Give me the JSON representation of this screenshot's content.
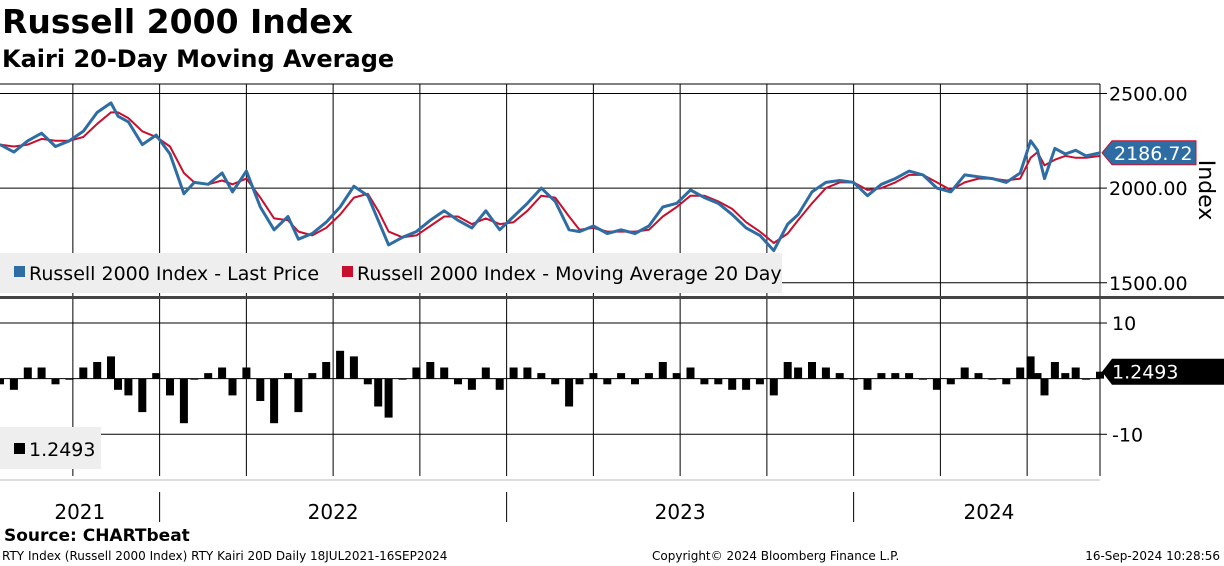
{
  "title": "Russell 2000 Index",
  "subtitle": "Kairi 20-Day Moving Average",
  "source": "Source: CHARTbeat",
  "footer": {
    "left": "RTY Index (Russell 2000 Index) RTY Kairi 20D  Daily 18JUL2021-16SEP2024",
    "center": "Copyright© 2024 Bloomberg Finance L.P.",
    "right": "16-Sep-2024 10:28:56"
  },
  "colors": {
    "price": "#2e6da4",
    "ma": "#c8102e",
    "kairi": "#000000",
    "legend_bg": "#eeeeee"
  },
  "chart_data": [
    {
      "type": "line",
      "name": "price-panel",
      "ylabel": "Index",
      "ylim": [
        1430,
        2550
      ],
      "yticks": [
        1500,
        2000,
        2500
      ],
      "ytick_labels": [
        "1500.00",
        "2000.00",
        "2500.00"
      ],
      "x_range": [
        2021.54,
        2024.71
      ],
      "x_year_labels": [
        {
          "label": "2021",
          "x": 2021.77
        },
        {
          "label": "2022",
          "x": 2022.5
        },
        {
          "label": "2023",
          "x": 2023.5
        },
        {
          "label": "2024",
          "x": 2024.39
        }
      ],
      "x_year_boundaries": [
        2022.0,
        2023.0,
        2024.0
      ],
      "x_gridlines": [
        2021.54,
        2021.75,
        2022.0,
        2022.25,
        2022.5,
        2022.75,
        2023.0,
        2023.25,
        2023.5,
        2023.75,
        2024.0,
        2024.25,
        2024.5
      ],
      "last_value_label": "2186.72",
      "series": [
        {
          "name": "Russell 2000 Index - Last Price",
          "legend": "Russell 2000 Index - Last Price",
          "x": [
            2021.54,
            2021.58,
            2021.62,
            2021.66,
            2021.7,
            2021.74,
            2021.78,
            2021.82,
            2021.86,
            2021.88,
            2021.91,
            2021.95,
            2021.99,
            2022.03,
            2022.07,
            2022.1,
            2022.14,
            2022.18,
            2022.21,
            2022.25,
            2022.29,
            2022.33,
            2022.37,
            2022.4,
            2022.44,
            2022.48,
            2022.52,
            2022.56,
            2022.6,
            2022.63,
            2022.66,
            2022.7,
            2022.74,
            2022.78,
            2022.82,
            2022.86,
            2022.9,
            2022.94,
            2022.98,
            2023.02,
            2023.06,
            2023.1,
            2023.14,
            2023.18,
            2023.21,
            2023.25,
            2023.29,
            2023.33,
            2023.37,
            2023.41,
            2023.45,
            2023.49,
            2023.53,
            2023.57,
            2023.61,
            2023.65,
            2023.69,
            2023.73,
            2023.77,
            2023.81,
            2023.84,
            2023.88,
            2023.92,
            2023.96,
            2024.0,
            2024.04,
            2024.08,
            2024.12,
            2024.16,
            2024.2,
            2024.24,
            2024.28,
            2024.32,
            2024.36,
            2024.4,
            2024.44,
            2024.48,
            2024.51,
            2024.53,
            2024.55,
            2024.58,
            2024.61,
            2024.64,
            2024.67,
            2024.71
          ],
          "y": [
            2230,
            2190,
            2250,
            2290,
            2220,
            2250,
            2300,
            2400,
            2450,
            2380,
            2350,
            2230,
            2280,
            2180,
            1970,
            2030,
            2020,
            2080,
            1980,
            2090,
            1900,
            1780,
            1850,
            1730,
            1760,
            1820,
            1900,
            2010,
            1960,
            1830,
            1700,
            1740,
            1770,
            1830,
            1880,
            1830,
            1790,
            1880,
            1780,
            1850,
            1920,
            2000,
            1930,
            1780,
            1770,
            1800,
            1760,
            1780,
            1760,
            1800,
            1900,
            1920,
            1990,
            1950,
            1920,
            1860,
            1790,
            1750,
            1670,
            1810,
            1860,
            1980,
            2030,
            2040,
            2030,
            1960,
            2020,
            2050,
            2090,
            2070,
            2000,
            1980,
            2070,
            2060,
            2050,
            2030,
            2080,
            2250,
            2200,
            2050,
            2210,
            2180,
            2200,
            2170,
            2186.72
          ]
        },
        {
          "name": "Russell 2000 Index - Moving Average 20 Day",
          "legend": "Russell 2000 Index - Moving Average 20 Day",
          "x": [
            2021.54,
            2021.58,
            2021.62,
            2021.66,
            2021.7,
            2021.74,
            2021.78,
            2021.82,
            2021.86,
            2021.88,
            2021.91,
            2021.95,
            2021.99,
            2022.03,
            2022.07,
            2022.1,
            2022.14,
            2022.18,
            2022.21,
            2022.25,
            2022.29,
            2022.33,
            2022.37,
            2022.4,
            2022.44,
            2022.48,
            2022.52,
            2022.56,
            2022.6,
            2022.63,
            2022.66,
            2022.7,
            2022.74,
            2022.78,
            2022.82,
            2022.86,
            2022.9,
            2022.94,
            2022.98,
            2023.02,
            2023.06,
            2023.1,
            2023.14,
            2023.18,
            2023.21,
            2023.25,
            2023.29,
            2023.33,
            2023.37,
            2023.41,
            2023.45,
            2023.49,
            2023.53,
            2023.57,
            2023.61,
            2023.65,
            2023.69,
            2023.73,
            2023.77,
            2023.81,
            2023.84,
            2023.88,
            2023.92,
            2023.96,
            2024.0,
            2024.04,
            2024.08,
            2024.12,
            2024.16,
            2024.2,
            2024.24,
            2024.28,
            2024.32,
            2024.36,
            2024.4,
            2024.44,
            2024.48,
            2024.51,
            2024.53,
            2024.55,
            2024.58,
            2024.61,
            2024.64,
            2024.67,
            2024.71
          ],
          "y": [
            2230,
            2220,
            2230,
            2260,
            2250,
            2250,
            2270,
            2340,
            2400,
            2400,
            2370,
            2300,
            2270,
            2220,
            2080,
            2030,
            2020,
            2040,
            2020,
            2050,
            1950,
            1840,
            1830,
            1770,
            1750,
            1790,
            1860,
            1950,
            1970,
            1880,
            1770,
            1740,
            1750,
            1800,
            1850,
            1850,
            1810,
            1840,
            1810,
            1820,
            1880,
            1960,
            1950,
            1850,
            1780,
            1790,
            1770,
            1770,
            1770,
            1780,
            1850,
            1900,
            1960,
            1960,
            1930,
            1890,
            1820,
            1770,
            1710,
            1760,
            1830,
            1920,
            2000,
            2030,
            2030,
            1990,
            2000,
            2030,
            2070,
            2070,
            2030,
            1990,
            2030,
            2050,
            2050,
            2040,
            2050,
            2160,
            2190,
            2120,
            2150,
            2170,
            2160,
            2160,
            2170
          ]
        }
      ]
    },
    {
      "type": "bar",
      "name": "kairi-panel",
      "ylim": [
        -17.5,
        14.5
      ],
      "yticks": [
        -10,
        10
      ],
      "ytick_labels": [
        "-10",
        "10"
      ],
      "last_value_label": "1.2493",
      "series": [
        {
          "name": "Kairi 20D",
          "legend": "1.2493",
          "x": [
            2021.54,
            2021.58,
            2021.62,
            2021.66,
            2021.7,
            2021.74,
            2021.78,
            2021.82,
            2021.86,
            2021.88,
            2021.91,
            2021.95,
            2021.99,
            2022.03,
            2022.07,
            2022.1,
            2022.14,
            2022.18,
            2022.21,
            2022.25,
            2022.29,
            2022.33,
            2022.37,
            2022.4,
            2022.44,
            2022.48,
            2022.52,
            2022.56,
            2022.6,
            2022.63,
            2022.66,
            2022.7,
            2022.74,
            2022.78,
            2022.82,
            2022.86,
            2022.9,
            2022.94,
            2022.98,
            2023.02,
            2023.06,
            2023.1,
            2023.14,
            2023.18,
            2023.21,
            2023.25,
            2023.29,
            2023.33,
            2023.37,
            2023.41,
            2023.45,
            2023.49,
            2023.53,
            2023.57,
            2023.61,
            2023.65,
            2023.69,
            2023.73,
            2023.77,
            2023.81,
            2023.84,
            2023.88,
            2023.92,
            2023.96,
            2024.0,
            2024.04,
            2024.08,
            2024.12,
            2024.16,
            2024.2,
            2024.24,
            2024.28,
            2024.32,
            2024.36,
            2024.4,
            2024.44,
            2024.48,
            2024.51,
            2024.53,
            2024.55,
            2024.58,
            2024.61,
            2024.64,
            2024.67,
            2024.71
          ],
          "y": [
            -1,
            -2,
            2,
            2,
            -1,
            0,
            2,
            3,
            4,
            -2,
            -3,
            -6,
            1,
            -3,
            -8,
            0,
            1,
            2,
            -3,
            2,
            -4,
            -8,
            1,
            -6,
            1,
            3,
            5,
            4,
            -1,
            -5,
            -7,
            0,
            2,
            3,
            2,
            -1,
            -2,
            2,
            -2,
            2,
            2,
            1,
            -1,
            -5,
            -1,
            1,
            -1,
            1,
            -1,
            1,
            3,
            1,
            2,
            -1,
            -1,
            -2,
            -2,
            -1,
            -3,
            3,
            2,
            3,
            2,
            1,
            0,
            -2,
            1,
            1,
            1,
            0,
            -2,
            -1,
            2,
            1,
            0,
            -1,
            2,
            4,
            1,
            -3,
            3,
            1,
            2,
            0,
            1.2493
          ]
        }
      ]
    }
  ]
}
